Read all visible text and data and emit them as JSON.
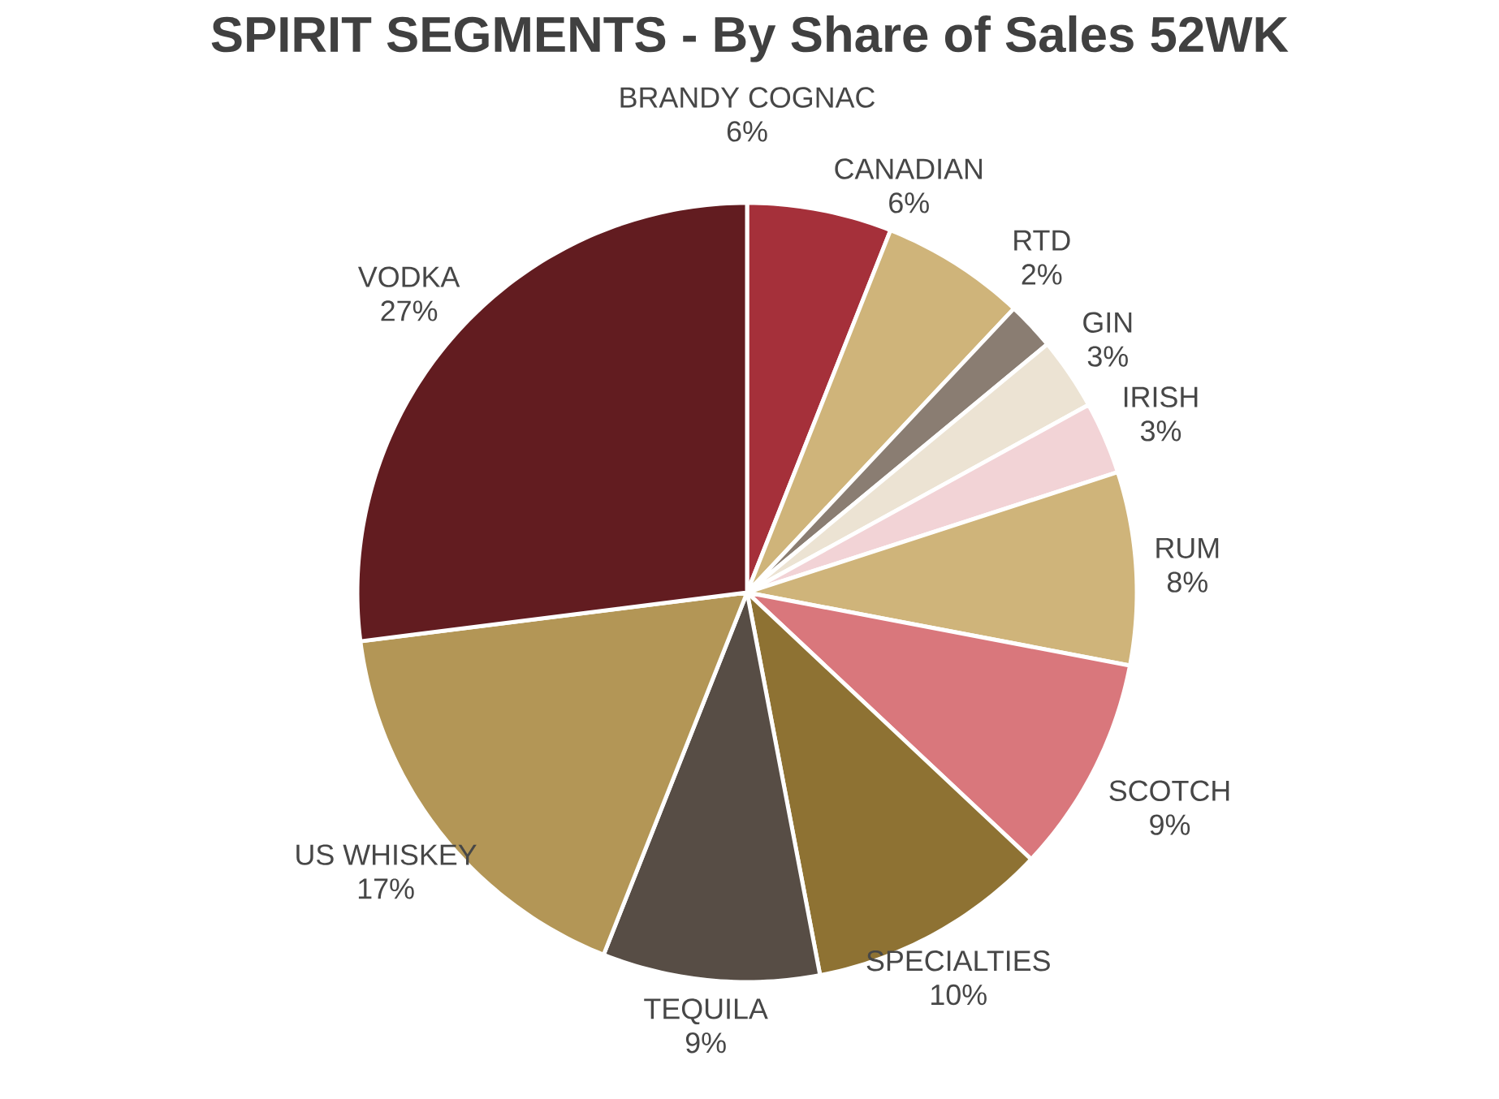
{
  "chart_data": {
    "type": "pie",
    "title": "SPIRIT SEGMENTS - By Share of Sales 52WK",
    "categories": [
      "BRANDY COGNAC",
      "CANADIAN",
      "RTD",
      "GIN",
      "IRISH",
      "RUM",
      "SCOTCH",
      "SPECIALTIES",
      "TEQUILA",
      "US WHISKEY",
      "VODKA"
    ],
    "values": [
      6,
      6,
      2,
      3,
      3,
      8,
      9,
      10,
      9,
      17,
      27
    ],
    "value_labels": [
      "6%",
      "6%",
      "2%",
      "3%",
      "3%",
      "8%",
      "9%",
      "10%",
      "9%",
      "17%",
      "27%"
    ],
    "colors": [
      "#a5303a",
      "#cfb47a",
      "#8a7d72",
      "#ece3d3",
      "#f2d3d6",
      "#cfb47a",
      "#d9777c",
      "#8e7233",
      "#574d45",
      "#b39656",
      "#621c20"
    ]
  }
}
